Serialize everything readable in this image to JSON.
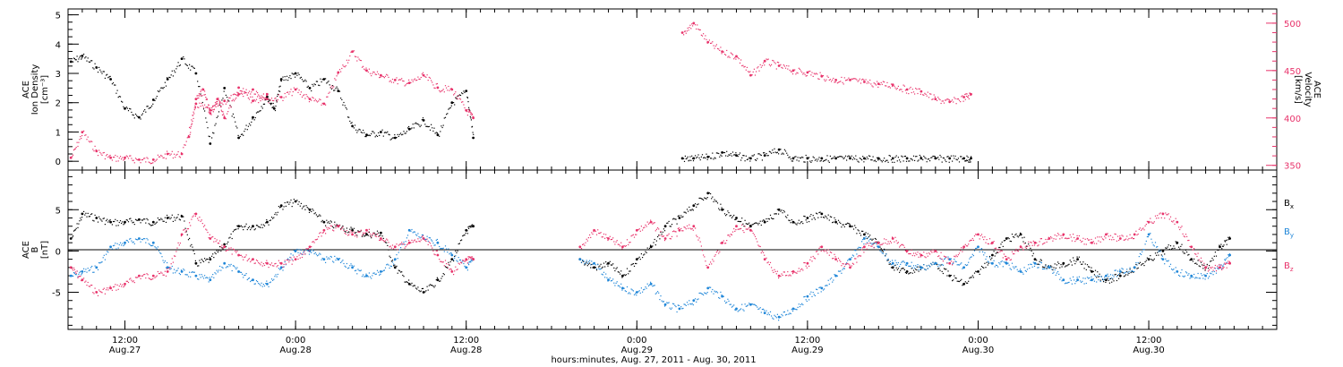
{
  "figure": {
    "xlabel": "hours:minutes, Aug. 27, 2011 - Aug. 30, 2011"
  },
  "colors": {
    "black": "#000000",
    "red": "#e8336b",
    "blue": "#1f86d8",
    "axis": "#000000"
  },
  "chart_data": [
    {
      "type": "scatter",
      "panel": "top",
      "y_left_label": [
        "ACE",
        "Ion Density",
        "[cm⁻³]"
      ],
      "y_right_label": [
        "ACE",
        "Velocity",
        "[km/s]"
      ],
      "ylim_left": [
        -0.3,
        5.2
      ],
      "ylim_right": [
        345,
        515
      ],
      "y_left_ticks": [
        "0",
        "1",
        "2",
        "3",
        "4",
        "5"
      ],
      "y_right_ticks": [
        "350",
        "400",
        "450",
        "500"
      ],
      "x_ticks": [
        {
          "t": "12:00",
          "d": "Aug.27"
        },
        {
          "t": "0:00",
          "d": "Aug.28"
        },
        {
          "t": "12:00",
          "d": "Aug.28"
        },
        {
          "t": "0:00",
          "d": "Aug.29"
        },
        {
          "t": "12:00",
          "d": "Aug.29"
        },
        {
          "t": "0:00",
          "d": "Aug.30"
        },
        {
          "t": "12:00",
          "d": "Aug.30"
        }
      ],
      "xlim_hours_from_Aug27_0000": [
        8,
        93
      ],
      "series": [
        {
          "name": "Ion Density",
          "axis": "left",
          "color": "black",
          "x_hours": [
            8.2,
            9,
            10,
            11,
            12,
            13,
            14,
            15,
            16,
            17,
            18,
            19,
            20,
            21,
            22,
            22.5,
            23,
            24,
            25,
            26,
            27,
            28,
            29,
            30,
            31,
            32,
            33,
            34,
            35,
            36,
            36.5,
            51.2,
            52,
            53,
            54,
            55,
            56,
            57,
            58,
            59,
            60,
            61,
            62,
            63,
            64,
            65,
            66,
            67,
            68,
            69,
            70,
            71,
            71.5
          ],
          "y": [
            3.4,
            3.6,
            3.2,
            2.8,
            1.8,
            1.5,
            2.1,
            2.8,
            3.5,
            3.0,
            0.6,
            2.5,
            0.8,
            1.5,
            2.2,
            1.8,
            2.8,
            3.0,
            2.5,
            2.8,
            2.4,
            1.2,
            0.9,
            1.0,
            0.8,
            1.1,
            1.4,
            0.9,
            2.0,
            2.4,
            0.8,
            0.1,
            0.1,
            0.15,
            0.3,
            0.2,
            0.1,
            0.2,
            0.4,
            0.1,
            0.1,
            0.1,
            0.1,
            0.1,
            0.1,
            0.1,
            0.1,
            0.1,
            0.1,
            0.1,
            0.1,
            0.1,
            0.1
          ]
        },
        {
          "name": "Velocity",
          "axis": "right",
          "color": "red",
          "x_hours": [
            8.2,
            9,
            10,
            11,
            12,
            13,
            14,
            15,
            16,
            17,
            18,
            19,
            20,
            21,
            22,
            23,
            24,
            25,
            26,
            27,
            28,
            29,
            30,
            31,
            32,
            33,
            34,
            35,
            36,
            36.5,
            51.2,
            52,
            53,
            54,
            55,
            56,
            57,
            58,
            59,
            60,
            61,
            62,
            63,
            64,
            65,
            66,
            67,
            68,
            69,
            70,
            71,
            71.5
          ],
          "y": [
            358,
            385,
            365,
            358,
            358,
            356,
            356,
            362,
            362,
            415,
            408,
            418,
            425,
            430,
            420,
            422,
            430,
            420,
            415,
            448,
            470,
            450,
            445,
            440,
            437,
            445,
            432,
            430,
            408,
            400,
            490,
            500,
            480,
            470,
            465,
            445,
            460,
            455,
            450,
            448,
            444,
            440,
            440,
            438,
            436,
            435,
            430,
            428,
            420,
            417,
            422,
            425
          ]
        },
        {
          "name": "Velocity",
          "axis": "right",
          "color": "red",
          "x_hours": [
            16.5,
            17,
            17.5,
            18,
            18.5,
            19,
            20,
            21,
            22
          ],
          "y": [
            380,
            420,
            430,
            405,
            420,
            400,
            432,
            418,
            425
          ]
        }
      ]
    },
    {
      "type": "scatter",
      "panel": "bottom",
      "y_left_label": [
        "ACE",
        "B",
        "[nT]"
      ],
      "ylim": [
        -9.5,
        9.8
      ],
      "y_ticks": [
        "-5",
        "0",
        "5"
      ],
      "zero_line": true,
      "xlim_hours_from_Aug27_0000": [
        8,
        93
      ],
      "legend_position": "right",
      "series": [
        {
          "name": "Bx",
          "color": "black",
          "x_hours": [
            8.2,
            9,
            10,
            11,
            12,
            13,
            14,
            15,
            16,
            17,
            18,
            19,
            20,
            21,
            22,
            23,
            24,
            25,
            26,
            27,
            28,
            29,
            30,
            31,
            32,
            33,
            34,
            35,
            36,
            36.5,
            44,
            45,
            46,
            47,
            48,
            49,
            50,
            51,
            52,
            53,
            54,
            55,
            56,
            57,
            58,
            59,
            60,
            61,
            62,
            63,
            64,
            65,
            66,
            67,
            68,
            69,
            70,
            71,
            72,
            73,
            74,
            75,
            76,
            77,
            78,
            79,
            80,
            81,
            82,
            83,
            84,
            85,
            86,
            87,
            88,
            89,
            89.7
          ],
          "y": [
            1.5,
            4.5,
            4.0,
            3.5,
            3.5,
            3.8,
            3.5,
            4.0,
            4.2,
            -1.5,
            -1.0,
            0.8,
            3.0,
            3.0,
            3.5,
            5.5,
            6.0,
            5.0,
            3.5,
            3.0,
            2.5,
            2.0,
            2.2,
            -2.0,
            -4.0,
            -5.0,
            -3.5,
            -1.0,
            2.5,
            3.0,
            -1.0,
            -2.0,
            -1.5,
            -3.0,
            -1.0,
            0.5,
            3.0,
            4.0,
            5.5,
            7.0,
            5.0,
            4.0,
            3.0,
            3.5,
            5.0,
            3.5,
            4.0,
            4.5,
            3.5,
            3.0,
            2.0,
            1.0,
            -2.0,
            -2.5,
            -2.0,
            -1.5,
            -3.0,
            -4.0,
            -2.5,
            -0.5,
            1.5,
            2.0,
            -1.0,
            -2.0,
            -1.5,
            -1.0,
            -2.5,
            -3.5,
            -3.0,
            -2.0,
            -1.0,
            0.0,
            1.0,
            -1.0,
            -2.0,
            0.5,
            1.5
          ]
        },
        {
          "name": "By",
          "color": "blue",
          "x_hours": [
            8.2,
            9,
            10,
            11,
            12,
            13,
            14,
            15,
            16,
            17,
            18,
            19,
            20,
            21,
            22,
            23,
            24,
            25,
            26,
            27,
            28,
            29,
            30,
            31,
            32,
            33,
            34,
            35,
            36,
            36.5,
            44,
            45,
            46,
            47,
            48,
            49,
            50,
            51,
            52,
            53,
            54,
            55,
            56,
            57,
            58,
            59,
            60,
            61,
            62,
            63,
            64,
            65,
            66,
            67,
            68,
            69,
            70,
            71,
            72,
            73,
            74,
            75,
            76,
            77,
            78,
            79,
            80,
            81,
            82,
            83,
            84,
            85,
            86,
            87,
            88,
            89,
            89.7
          ],
          "y": [
            -3.0,
            -2.5,
            -2.0,
            0.5,
            1.0,
            1.5,
            1.0,
            -2.0,
            -2.5,
            -3.0,
            -3.5,
            -1.5,
            -2.5,
            -3.5,
            -4.0,
            -2.0,
            0.0,
            0.0,
            -1.0,
            -1.0,
            -2.0,
            -3.0,
            -2.5,
            -1.0,
            2.5,
            1.5,
            1.0,
            -0.5,
            -2.0,
            -1.0,
            -1.0,
            -1.5,
            -3.5,
            -4.5,
            -5.0,
            -4.0,
            -6.5,
            -7.0,
            -6.0,
            -4.5,
            -5.5,
            -7.0,
            -6.5,
            -7.5,
            -8.0,
            -7.0,
            -5.5,
            -4.5,
            -3.0,
            -1.0,
            1.5,
            0.5,
            -1.5,
            -1.5,
            -2.0,
            -1.5,
            -1.0,
            -2.0,
            0.5,
            -1.5,
            -1.5,
            -2.5,
            -1.5,
            -2.0,
            -3.5,
            -3.5,
            -3.5,
            -3.0,
            -2.5,
            -2.0,
            2.0,
            -1.0,
            -2.5,
            -3.0,
            -3.0,
            -2.0,
            -0.5
          ]
        },
        {
          "name": "Bz",
          "color": "red",
          "x_hours": [
            8.2,
            9,
            10,
            11,
            12,
            13,
            14,
            15,
            16,
            17,
            18,
            19,
            20,
            21,
            22,
            23,
            24,
            25,
            26,
            27,
            28,
            29,
            30,
            31,
            32,
            33,
            34,
            35,
            36,
            36.5,
            44,
            45,
            46,
            47,
            48,
            49,
            50,
            51,
            52,
            53,
            54,
            55,
            56,
            57,
            58,
            59,
            60,
            61,
            62,
            63,
            64,
            65,
            66,
            67,
            68,
            69,
            70,
            71,
            72,
            73,
            74,
            75,
            76,
            77,
            78,
            79,
            80,
            81,
            82,
            83,
            84,
            85,
            86,
            87,
            88,
            89,
            89.7
          ],
          "y": [
            -2.0,
            -3.5,
            -5.0,
            -4.5,
            -4.0,
            -3.0,
            -3.0,
            -2.5,
            2.0,
            4.5,
            1.5,
            0.5,
            -0.5,
            -1.0,
            -1.5,
            -1.5,
            -1.0,
            0.5,
            2.5,
            3.0,
            2.0,
            2.5,
            1.5,
            0.5,
            1.0,
            1.5,
            -0.5,
            -2.5,
            -1.0,
            -1.0,
            0.5,
            2.5,
            1.5,
            0.5,
            2.5,
            3.5,
            1.5,
            2.5,
            3.0,
            -2.0,
            1.0,
            3.0,
            2.5,
            -1.0,
            -3.0,
            -2.5,
            -1.5,
            0.5,
            -1.0,
            -2.0,
            0.5,
            1.0,
            1.5,
            0.0,
            -0.5,
            0.0,
            -1.5,
            0.5,
            2.0,
            1.0,
            -1.0,
            0.5,
            1.0,
            1.5,
            2.0,
            1.5,
            1.0,
            2.0,
            1.5,
            2.0,
            3.5,
            4.5,
            3.5,
            0.5,
            -2.0,
            -2.0,
            -1.5
          ]
        }
      ]
    }
  ],
  "legend": {
    "bx_main": "B",
    "bx_sub": "x",
    "by_main": "B",
    "by_sub": "y",
    "bz_main": "B",
    "bz_sub": "z"
  }
}
